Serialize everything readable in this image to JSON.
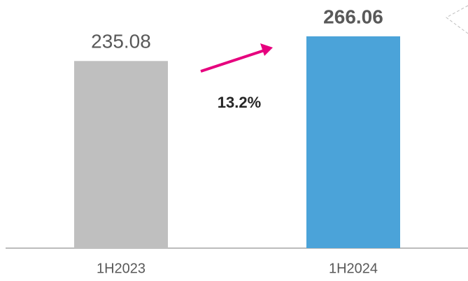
{
  "chart_data": {
    "type": "bar",
    "categories": [
      "1H2023",
      "1H2024"
    ],
    "values": [
      235.08,
      266.06
    ],
    "colors": [
      "#bfbfbf",
      "#4ba3d9"
    ],
    "annotations": [
      "13.2%"
    ]
  }
}
